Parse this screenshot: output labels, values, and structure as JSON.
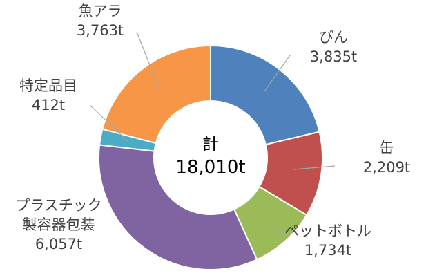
{
  "chart_data": {
    "type": "pie",
    "variant": "donut",
    "center_label": {
      "line1": "計",
      "line2": "18,010t"
    },
    "slices": [
      {
        "name": "びん",
        "value": 3835,
        "value_label": "3,835t",
        "color": "#4F81BD"
      },
      {
        "name": "缶",
        "value": 2209,
        "value_label": "2,209t",
        "color": "#C0504D"
      },
      {
        "name": "ペットボトル",
        "value": 1734,
        "value_label": "1,734t",
        "color": "#9BBB59"
      },
      {
        "name": "プラスチック\n製容器包装",
        "value": 6057,
        "value_label": "6,057t",
        "color": "#8064A2"
      },
      {
        "name": "特定品目",
        "value": 412,
        "value_label": "412t",
        "color": "#4BACC6"
      },
      {
        "name": "魚アラ",
        "value": 3763,
        "value_label": "3,763t",
        "color": "#F79646"
      }
    ],
    "legend": "none",
    "data_labels": "outside with leader lines"
  }
}
